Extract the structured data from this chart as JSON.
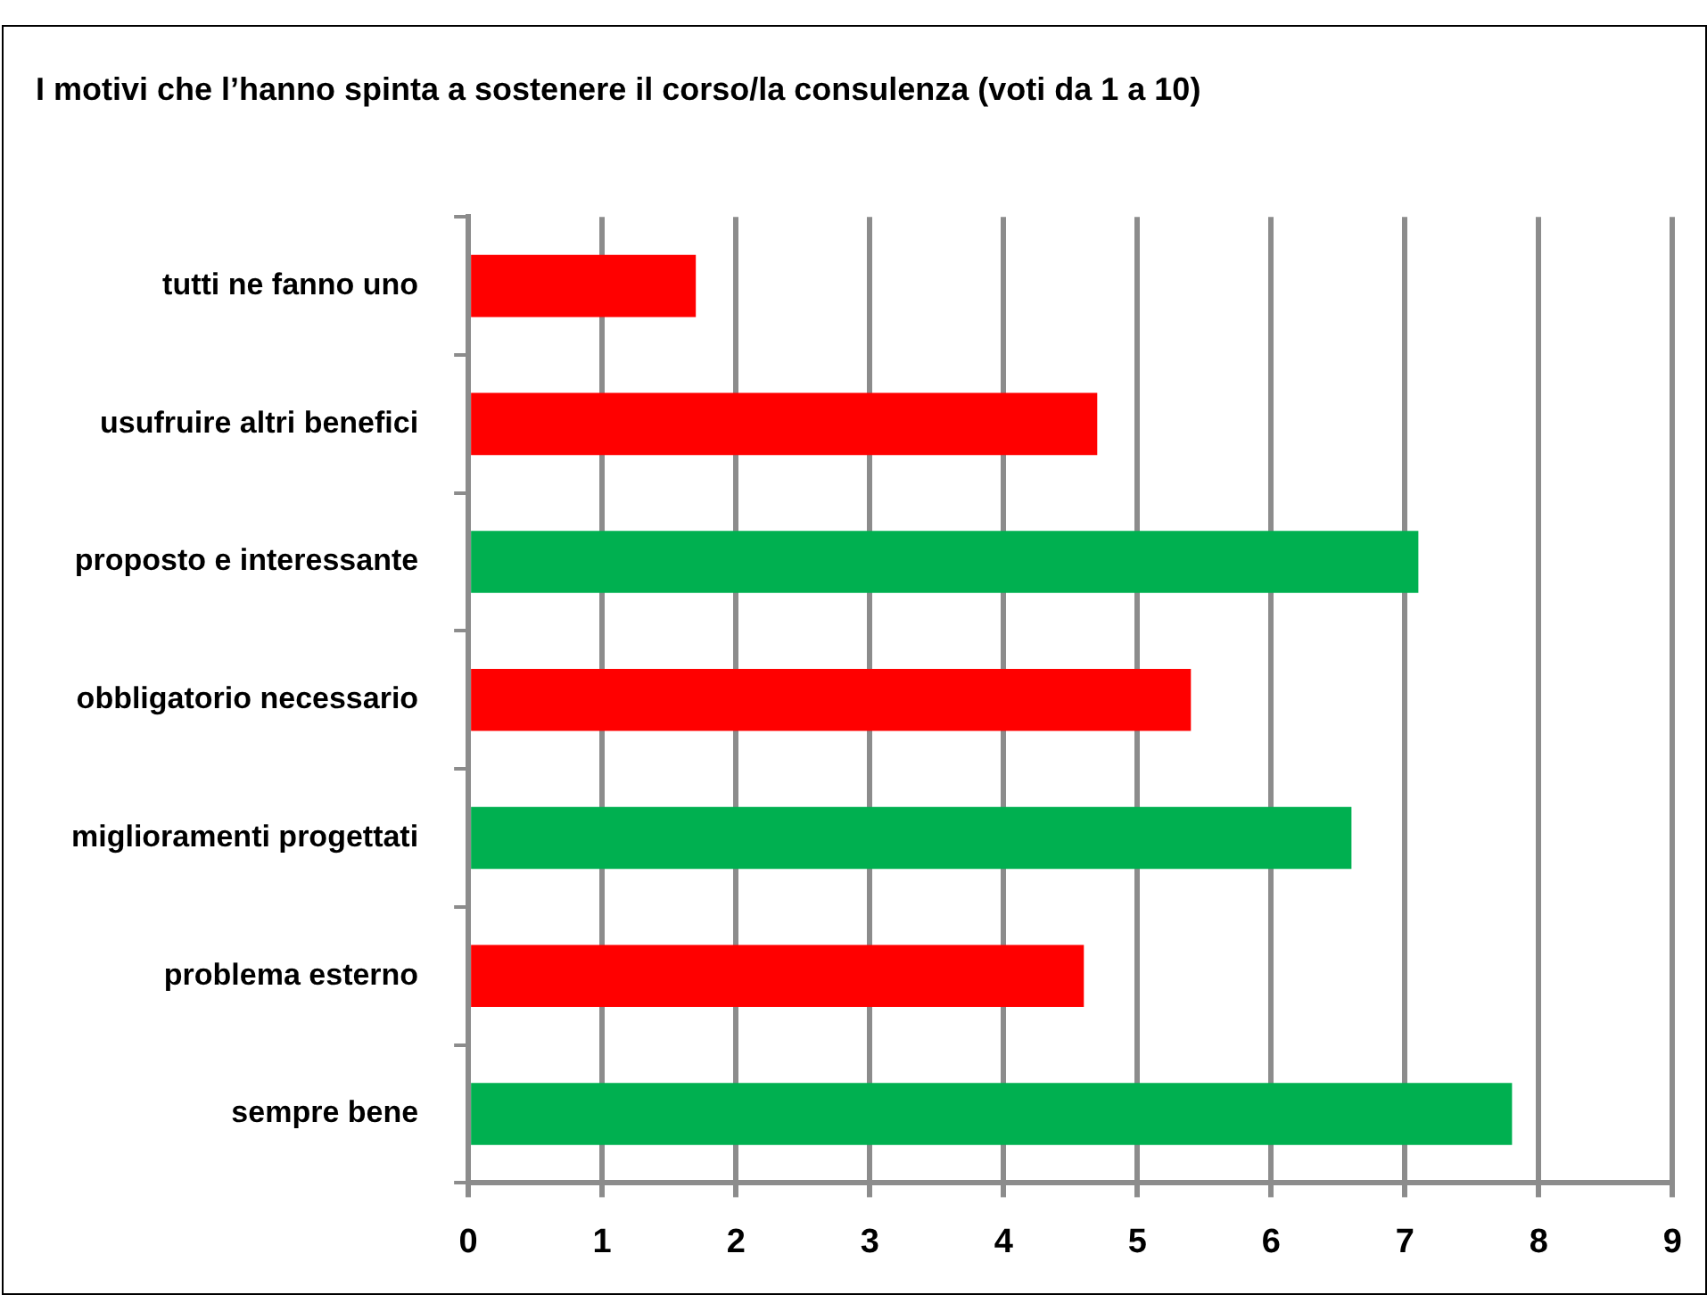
{
  "chart_data": {
    "type": "bar",
    "orientation": "horizontal",
    "title": "I motivi che l’hanno spinta a sostenere il corso/la consulenza (voti da 1 a 10)",
    "categories": [
      "tutti ne fanno uno",
      "usufruire altri benefici",
      "proposto e interessante",
      "obbligatorio necessario",
      "miglioramenti progettati",
      "problema esterno",
      "sempre bene"
    ],
    "values": [
      1.7,
      4.7,
      7.1,
      5.4,
      6.6,
      4.6,
      7.8
    ],
    "colors": [
      "#ff0000",
      "#ff0000",
      "#00b050",
      "#ff0000",
      "#00b050",
      "#ff0000",
      "#00b050"
    ],
    "xlim": [
      0,
      9
    ],
    "xticks": [
      0,
      1,
      2,
      3,
      4,
      5,
      6,
      7,
      8,
      9
    ],
    "grid": "x",
    "legend": false
  }
}
